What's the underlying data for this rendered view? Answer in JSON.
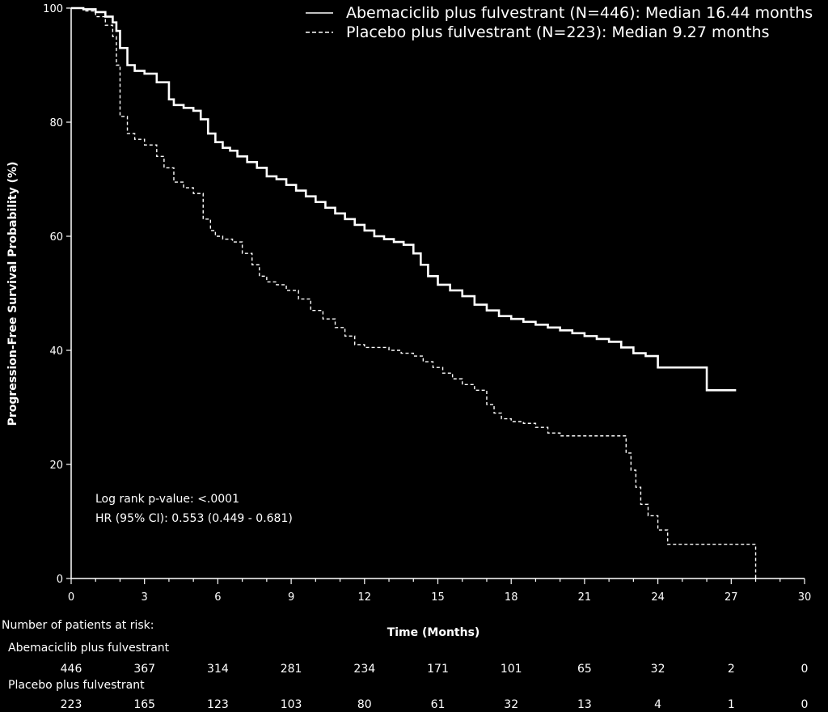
{
  "chart_data": {
    "type": "line",
    "title": "",
    "xlabel": "Time (Months)",
    "ylabel": "Progression-Free Survival Probability (%)",
    "xlim": [
      0,
      30
    ],
    "ylim": [
      0,
      100
    ],
    "xticks": [
      0,
      3,
      6,
      9,
      12,
      15,
      18,
      21,
      24,
      27,
      30
    ],
    "yticks": [
      0,
      20,
      40,
      60,
      80,
      100
    ],
    "grid": false,
    "legend_position": "top-right",
    "background": "#000000",
    "line_color": "#ffffff",
    "series": [
      {
        "name": "Abemaciclib plus fulvestrant (N=446): Median 16.44 months",
        "style": "solid",
        "x": [
          0,
          0.5,
          1.0,
          1.4,
          1.7,
          1.85,
          2.0,
          2.3,
          2.6,
          3.0,
          3.5,
          4.0,
          4.2,
          4.6,
          5.0,
          5.3,
          5.6,
          5.9,
          6.2,
          6.5,
          6.8,
          7.2,
          7.6,
          8.0,
          8.4,
          8.8,
          9.2,
          9.6,
          10.0,
          10.4,
          10.8,
          11.2,
          11.6,
          12.0,
          12.4,
          12.8,
          13.2,
          13.6,
          14.0,
          14.3,
          14.6,
          15.0,
          15.5,
          16.0,
          16.5,
          17.0,
          17.5,
          18.0,
          18.5,
          19.0,
          19.5,
          20.0,
          20.5,
          21.0,
          21.5,
          22.0,
          22.5,
          23.0,
          23.5,
          24.0,
          25.0,
          26.0,
          26.5,
          27.2
        ],
        "values": [
          100,
          99.8,
          99.3,
          98.5,
          97.5,
          96,
          93,
          90,
          89,
          88.5,
          87,
          84,
          83,
          82.5,
          82,
          80.5,
          78,
          76.5,
          75.5,
          75,
          74,
          73,
          72,
          70.5,
          70,
          69,
          68,
          67,
          66,
          65,
          64,
          63,
          62,
          61,
          60,
          59.5,
          59,
          58.5,
          57,
          55,
          53,
          51.5,
          50.5,
          49.5,
          48,
          47,
          46,
          45.5,
          45,
          44.5,
          44,
          43.5,
          43,
          42.5,
          42,
          41.5,
          40.5,
          39.5,
          39,
          37,
          37,
          33,
          33,
          33
        ]
      },
      {
        "name": "Placebo plus fulvestrant (N=223): Median 9.27 months",
        "style": "dashed",
        "x": [
          0,
          0.5,
          1.0,
          1.4,
          1.7,
          1.85,
          2.0,
          2.3,
          2.6,
          3.0,
          3.5,
          3.8,
          4.2,
          4.6,
          5.0,
          5.4,
          5.7,
          5.9,
          6.2,
          6.6,
          7.0,
          7.4,
          7.7,
          8.0,
          8.4,
          8.8,
          9.3,
          9.8,
          10.3,
          10.8,
          11.2,
          11.6,
          12.0,
          12.5,
          13.0,
          13.5,
          14.0,
          14.4,
          14.8,
          15.2,
          15.6,
          16.0,
          16.5,
          17.0,
          17.3,
          17.6,
          18.0,
          18.5,
          19.0,
          19.5,
          20.0,
          20.5,
          21.0,
          22.0,
          22.7,
          22.9,
          23.1,
          23.3,
          23.6,
          24.0,
          24.4,
          24.8,
          25.5,
          26.5,
          27.5,
          28.0
        ],
        "values": [
          100,
          99.5,
          98.5,
          97,
          95,
          90,
          81,
          78,
          77,
          76,
          74,
          72,
          69.5,
          68.5,
          67.5,
          63,
          61,
          60,
          59.5,
          59,
          57,
          55,
          53,
          52,
          51.5,
          50.5,
          49,
          47,
          45.5,
          44,
          42.5,
          41,
          40.5,
          40.5,
          40,
          39.5,
          39,
          38,
          37,
          36,
          35,
          34,
          33,
          30.5,
          29,
          28,
          27.5,
          27.2,
          26.5,
          25.5,
          25,
          25,
          25,
          25,
          22,
          19,
          16,
          13,
          11,
          8.5,
          6,
          6,
          6,
          6,
          6,
          0
        ]
      }
    ]
  },
  "annotations": {
    "line1": "Log rank p-value: <.0001",
    "line2": "HR (95% CI): 0.553 (0.449 - 0.681)"
  },
  "risk_table": {
    "title": "Number of patients at risk:",
    "times": [
      0,
      3,
      6,
      9,
      12,
      15,
      18,
      21,
      24,
      27,
      30
    ],
    "rows": [
      {
        "label": "Abemaciclib plus fulvestrant",
        "counts": [
          "446",
          "367",
          "314",
          "281",
          "234",
          "171",
          "101",
          "65",
          "32",
          "2",
          "0"
        ]
      },
      {
        "label": "Placebo plus fulvestrant",
        "counts": [
          "223",
          "165",
          "123",
          "103",
          "80",
          "61",
          "32",
          "13",
          "4",
          "1",
          "0"
        ]
      }
    ]
  }
}
